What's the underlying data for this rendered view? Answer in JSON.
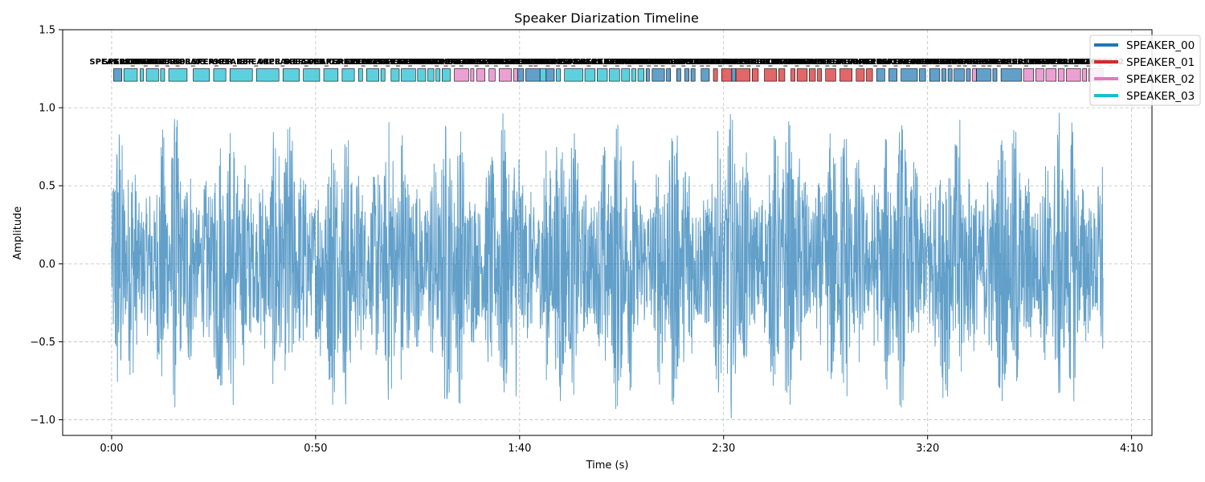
{
  "chart_data": {
    "type": "line",
    "title": "Speaker Diarization Timeline",
    "xlabel": "Time (s)",
    "ylabel": "Amplitude",
    "xlim": [
      -12,
      255
    ],
    "ylim": [
      -1.1,
      1.5
    ],
    "grid": true,
    "legend_position": "top-right",
    "x_ticks": [
      {
        "value": 0,
        "label": "0:00"
      },
      {
        "value": 50,
        "label": "0:50"
      },
      {
        "value": 100,
        "label": "1:40"
      },
      {
        "value": 150,
        "label": "2:30"
      },
      {
        "value": 200,
        "label": "3:20"
      },
      {
        "value": 250,
        "label": "4:10"
      }
    ],
    "y_ticks": [
      {
        "value": 1.5,
        "label": "1.5"
      },
      {
        "value": 1.0,
        "label": "1.0"
      },
      {
        "value": 0.5,
        "label": "0.5"
      },
      {
        "value": 0.0,
        "label": "0.0"
      },
      {
        "value": -0.5,
        "label": "−0.5"
      },
      {
        "value": -1.0,
        "label": "−1.0"
      }
    ],
    "waveform": {
      "duration_s": 243,
      "peak_amplitude": 1.0,
      "color": "#1f77b4"
    },
    "speakers": [
      {
        "name": "SPEAKER_00",
        "color": "#1f77b4"
      },
      {
        "name": "SPEAKER_01",
        "color": "#d62728"
      },
      {
        "name": "SPEAKER_02",
        "color": "#e377c2"
      },
      {
        "name": "SPEAKER_03",
        "color": "#17becf"
      }
    ],
    "segments": [
      {
        "speaker": "SPEAKER_00",
        "start": 0.5,
        "end": 2.5
      },
      {
        "speaker": "SPEAKER_03",
        "start": 3.0,
        "end": 6.3
      },
      {
        "speaker": "SPEAKER_03",
        "start": 7.0,
        "end": 7.8
      },
      {
        "speaker": "SPEAKER_03",
        "start": 8.5,
        "end": 11.5
      },
      {
        "speaker": "SPEAKER_03",
        "start": 12.0,
        "end": 13.0
      },
      {
        "speaker": "SPEAKER_03",
        "start": 14.0,
        "end": 18.5
      },
      {
        "speaker": "SPEAKER_03",
        "start": 20.0,
        "end": 24.0
      },
      {
        "speaker": "SPEAKER_03",
        "start": 25.0,
        "end": 28.0
      },
      {
        "speaker": "SPEAKER_03",
        "start": 29.0,
        "end": 34.5
      },
      {
        "speaker": "SPEAKER_03",
        "start": 35.5,
        "end": 41.0
      },
      {
        "speaker": "SPEAKER_03",
        "start": 42.0,
        "end": 46.0
      },
      {
        "speaker": "SPEAKER_03",
        "start": 47.0,
        "end": 51.0
      },
      {
        "speaker": "SPEAKER_03",
        "start": 52.0,
        "end": 55.5
      },
      {
        "speaker": "SPEAKER_03",
        "start": 56.5,
        "end": 59.5
      },
      {
        "speaker": "SPEAKER_03",
        "start": 60.5,
        "end": 61.5
      },
      {
        "speaker": "SPEAKER_03",
        "start": 62.5,
        "end": 65.5
      },
      {
        "speaker": "SPEAKER_03",
        "start": 66.0,
        "end": 67.0
      },
      {
        "speaker": "SPEAKER_03",
        "start": 68.5,
        "end": 70.5
      },
      {
        "speaker": "SPEAKER_03",
        "start": 71.0,
        "end": 74.5
      },
      {
        "speaker": "SPEAKER_03",
        "start": 75.0,
        "end": 77.0
      },
      {
        "speaker": "SPEAKER_03",
        "start": 77.5,
        "end": 79.0
      },
      {
        "speaker": "SPEAKER_03",
        "start": 79.5,
        "end": 80.5
      },
      {
        "speaker": "SPEAKER_03",
        "start": 81.0,
        "end": 83.0
      },
      {
        "speaker": "SPEAKER_02",
        "start": 84.0,
        "end": 87.5
      },
      {
        "speaker": "SPEAKER_02",
        "start": 88.0,
        "end": 88.8
      },
      {
        "speaker": "SPEAKER_02",
        "start": 89.5,
        "end": 91.5
      },
      {
        "speaker": "SPEAKER_02",
        "start": 92.5,
        "end": 94.0
      },
      {
        "speaker": "SPEAKER_02",
        "start": 95.0,
        "end": 98.0
      },
      {
        "speaker": "SPEAKER_02",
        "start": 98.5,
        "end": 99.5
      },
      {
        "speaker": "SPEAKER_00",
        "start": 99.5,
        "end": 101.0
      },
      {
        "speaker": "SPEAKER_00",
        "start": 101.5,
        "end": 105.0
      },
      {
        "speaker": "SPEAKER_03",
        "start": 105.0,
        "end": 106.5
      },
      {
        "speaker": "SPEAKER_00",
        "start": 106.5,
        "end": 108.5
      },
      {
        "speaker": "SPEAKER_03",
        "start": 109.0,
        "end": 110.0
      },
      {
        "speaker": "SPEAKER_03",
        "start": 111.0,
        "end": 115.5
      },
      {
        "speaker": "SPEAKER_03",
        "start": 116.0,
        "end": 118.5
      },
      {
        "speaker": "SPEAKER_03",
        "start": 119.0,
        "end": 121.5
      },
      {
        "speaker": "SPEAKER_03",
        "start": 122.0,
        "end": 124.5
      },
      {
        "speaker": "SPEAKER_03",
        "start": 125.0,
        "end": 127.0
      },
      {
        "speaker": "SPEAKER_03",
        "start": 127.5,
        "end": 128.5
      },
      {
        "speaker": "SPEAKER_03",
        "start": 129.0,
        "end": 130.5
      },
      {
        "speaker": "SPEAKER_00",
        "start": 131.0,
        "end": 131.8
      },
      {
        "speaker": "SPEAKER_00",
        "start": 132.5,
        "end": 135.5
      },
      {
        "speaker": "SPEAKER_00",
        "start": 136.0,
        "end": 137.0
      },
      {
        "speaker": "SPEAKER_00",
        "start": 138.5,
        "end": 139.5
      },
      {
        "speaker": "SPEAKER_00",
        "start": 140.5,
        "end": 141.5
      },
      {
        "speaker": "SPEAKER_00",
        "start": 142.0,
        "end": 143.0
      },
      {
        "speaker": "SPEAKER_00",
        "start": 144.5,
        "end": 146.5
      },
      {
        "speaker": "SPEAKER_01",
        "start": 147.5,
        "end": 148.5
      },
      {
        "speaker": "SPEAKER_01",
        "start": 149.5,
        "end": 152.0
      },
      {
        "speaker": "SPEAKER_00",
        "start": 152.0,
        "end": 153.0
      },
      {
        "speaker": "SPEAKER_01",
        "start": 153.0,
        "end": 156.5
      },
      {
        "speaker": "SPEAKER_01",
        "start": 157.0,
        "end": 158.5
      },
      {
        "speaker": "SPEAKER_01",
        "start": 160.0,
        "end": 163.0
      },
      {
        "speaker": "SPEAKER_01",
        "start": 163.5,
        "end": 165.0
      },
      {
        "speaker": "SPEAKER_01",
        "start": 166.5,
        "end": 167.5
      },
      {
        "speaker": "SPEAKER_01",
        "start": 168.0,
        "end": 170.5
      },
      {
        "speaker": "SPEAKER_01",
        "start": 171.0,
        "end": 172.5
      },
      {
        "speaker": "SPEAKER_01",
        "start": 173.0,
        "end": 174.0
      },
      {
        "speaker": "SPEAKER_01",
        "start": 175.0,
        "end": 177.5
      },
      {
        "speaker": "SPEAKER_01",
        "start": 178.5,
        "end": 181.5
      },
      {
        "speaker": "SPEAKER_01",
        "start": 182.5,
        "end": 184.5
      },
      {
        "speaker": "SPEAKER_01",
        "start": 185.0,
        "end": 186.5
      },
      {
        "speaker": "SPEAKER_00",
        "start": 187.5,
        "end": 189.5
      },
      {
        "speaker": "SPEAKER_00",
        "start": 190.5,
        "end": 192.5
      },
      {
        "speaker": "SPEAKER_00",
        "start": 193.5,
        "end": 197.5
      },
      {
        "speaker": "SPEAKER_00",
        "start": 198.0,
        "end": 199.5
      },
      {
        "speaker": "SPEAKER_00",
        "start": 200.5,
        "end": 203.0
      },
      {
        "speaker": "SPEAKER_00",
        "start": 203.5,
        "end": 204.5
      },
      {
        "speaker": "SPEAKER_00",
        "start": 205.0,
        "end": 206.0
      },
      {
        "speaker": "SPEAKER_00",
        "start": 206.5,
        "end": 209.0
      },
      {
        "speaker": "SPEAKER_00",
        "start": 209.5,
        "end": 210.5
      },
      {
        "speaker": "SPEAKER_02",
        "start": 211.0,
        "end": 212.0
      },
      {
        "speaker": "SPEAKER_00",
        "start": 212.0,
        "end": 215.5
      },
      {
        "speaker": "SPEAKER_00",
        "start": 216.0,
        "end": 217.0
      },
      {
        "speaker": "SPEAKER_00",
        "start": 218.0,
        "end": 223.0
      },
      {
        "speaker": "SPEAKER_02",
        "start": 223.5,
        "end": 226.0
      },
      {
        "speaker": "SPEAKER_02",
        "start": 226.5,
        "end": 228.5
      },
      {
        "speaker": "SPEAKER_02",
        "start": 229.0,
        "end": 231.5
      },
      {
        "speaker": "SPEAKER_02",
        "start": 232.0,
        "end": 233.5
      },
      {
        "speaker": "SPEAKER_02",
        "start": 234.0,
        "end": 237.5
      },
      {
        "speaker": "SPEAKER_02",
        "start": 238.0,
        "end": 239.0
      },
      {
        "speaker": "SPEAKER_02",
        "start": 239.5,
        "end": 243.0
      }
    ]
  }
}
